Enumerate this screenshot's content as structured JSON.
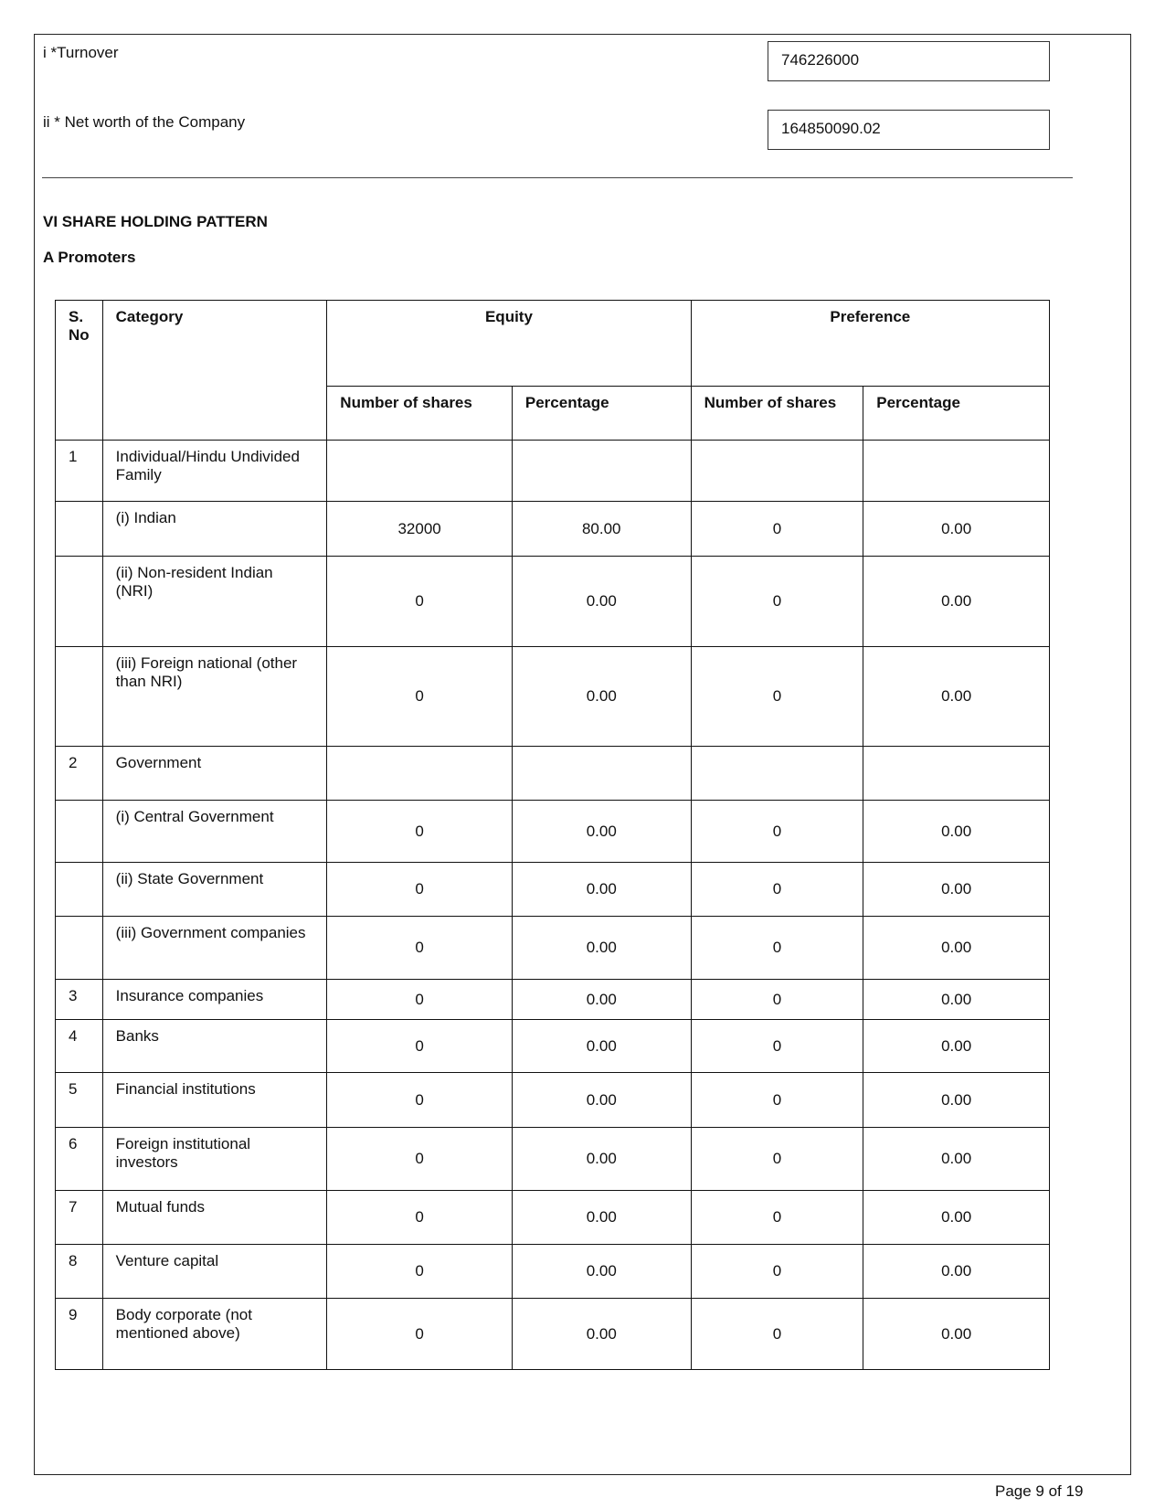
{
  "financials": {
    "turnover_label": "i *Turnover",
    "turnover_value": "746226000",
    "networth_label": "ii * Net worth of the Company",
    "networth_value": "164850090.02"
  },
  "section_title": "VI SHARE HOLDING PATTERN",
  "subsection_title": "A Promoters",
  "table": {
    "headers": {
      "sno": "S. No",
      "category": "Category",
      "equity": "Equity",
      "preference": "Preference",
      "num_shares": "Number of shares",
      "percentage": "Percentage"
    },
    "rows": [
      {
        "sno": "1",
        "category": "Individual/Hindu Undivided Family",
        "eq_n": "",
        "eq_p": "",
        "pr_n": "",
        "pr_p": ""
      },
      {
        "sno": "",
        "category": "(i) Indian",
        "eq_n": "32000",
        "eq_p": "80.00",
        "pr_n": "0",
        "pr_p": "0.00"
      },
      {
        "sno": "",
        "category": "(ii) Non-resident Indian (NRI)",
        "eq_n": "0",
        "eq_p": "0.00",
        "pr_n": "0",
        "pr_p": "0.00"
      },
      {
        "sno": "",
        "category": "(iii) Foreign national (other than NRI)",
        "eq_n": "0",
        "eq_p": "0.00",
        "pr_n": "0",
        "pr_p": "0.00"
      },
      {
        "sno": "2",
        "category": "Government",
        "eq_n": "",
        "eq_p": "",
        "pr_n": "",
        "pr_p": ""
      },
      {
        "sno": "",
        "category": "(i) Central Government",
        "eq_n": "0",
        "eq_p": "0.00",
        "pr_n": "0",
        "pr_p": "0.00"
      },
      {
        "sno": "",
        "category": "(ii) State Government",
        "eq_n": "0",
        "eq_p": "0.00",
        "pr_n": "0",
        "pr_p": "0.00"
      },
      {
        "sno": "",
        "category": "(iii) Government companies",
        "eq_n": "0",
        "eq_p": "0.00",
        "pr_n": "0",
        "pr_p": "0.00"
      },
      {
        "sno": "3",
        "category": "Insurance companies",
        "eq_n": "0",
        "eq_p": "0.00",
        "pr_n": "0",
        "pr_p": "0.00"
      },
      {
        "sno": "4",
        "category": "Banks",
        "eq_n": "0",
        "eq_p": "0.00",
        "pr_n": "0",
        "pr_p": "0.00"
      },
      {
        "sno": "5",
        "category": "Financial institutions",
        "eq_n": "0",
        "eq_p": "0.00",
        "pr_n": "0",
        "pr_p": "0.00"
      },
      {
        "sno": "6",
        "category": "Foreign institutional investors",
        "eq_n": "0",
        "eq_p": "0.00",
        "pr_n": "0",
        "pr_p": "0.00"
      },
      {
        "sno": "7",
        "category": "Mutual funds",
        "eq_n": "0",
        "eq_p": "0.00",
        "pr_n": "0",
        "pr_p": "0.00"
      },
      {
        "sno": "8",
        "category": "Venture capital",
        "eq_n": "0",
        "eq_p": "0.00",
        "pr_n": "0",
        "pr_p": "0.00"
      },
      {
        "sno": "9",
        "category": "Body corporate (not mentioned above)",
        "eq_n": "0",
        "eq_p": "0.00",
        "pr_n": "0",
        "pr_p": "0.00"
      }
    ]
  },
  "footer": "Page 9 of 19"
}
